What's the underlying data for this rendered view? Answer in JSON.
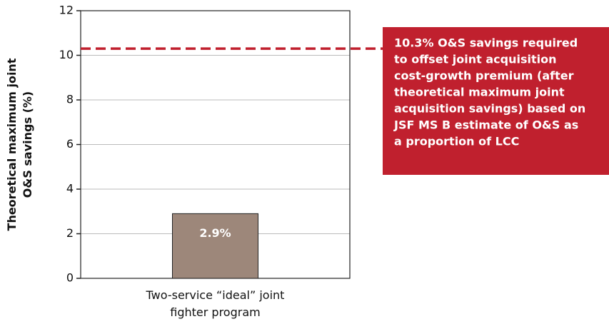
{
  "chart_data": {
    "type": "bar",
    "ylabel": "Theoretical maximum joint O&S savings (%)",
    "categories": [
      "Two-service “ideal” joint fighter program"
    ],
    "values": [
      2.9
    ],
    "value_labels": [
      "2.9%"
    ],
    "color": "#9d877a",
    "ylim": [
      0,
      12
    ],
    "yticks": [
      0,
      2,
      4,
      6,
      8,
      10,
      12
    ],
    "grid": true,
    "reference_line": {
      "value": 10.3,
      "color": "#c0202e",
      "annotation": [
        "10.3% O&S savings required",
        "to offset joint acquisition",
        "cost-growth premium (after",
        "theoretical maximum joint",
        "acquisition savings) based on",
        "JSF MS B estimate of O&S as",
        "a proportion of LCC"
      ]
    }
  }
}
